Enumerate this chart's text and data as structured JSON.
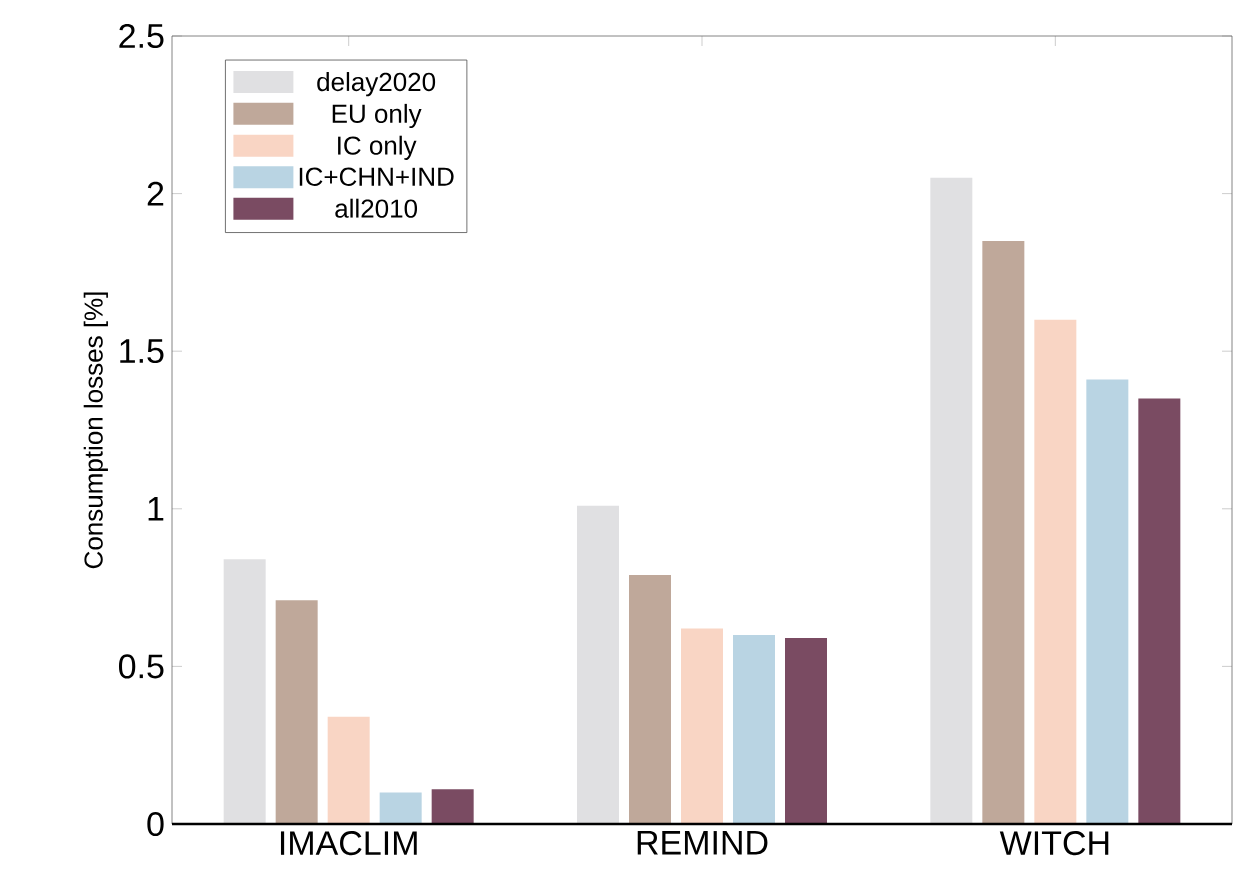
{
  "chart_data": {
    "type": "bar",
    "ylabel": "Consumption losses [%]",
    "categories": [
      "IMACLIM",
      "REMIND",
      "WITCH"
    ],
    "series": [
      {
        "name": "delay2020",
        "color": "#e0e0e2",
        "values": [
          0.84,
          1.01,
          2.05
        ]
      },
      {
        "name": "EU only",
        "color": "#bfa89a",
        "values": [
          0.71,
          0.79,
          1.85
        ]
      },
      {
        "name": "IC only",
        "color": "#f9d5c4",
        "values": [
          0.34,
          0.62,
          1.6
        ]
      },
      {
        "name": "IC+CHN+IND",
        "color": "#b9d4e3",
        "values": [
          0.1,
          0.6,
          1.41
        ]
      },
      {
        "name": "all2010",
        "color": "#7a4b62",
        "values": [
          0.11,
          0.59,
          1.35
        ]
      }
    ],
    "ylim": [
      0,
      2.5
    ],
    "yticks": [
      0,
      0.5,
      1,
      1.5,
      2,
      2.5
    ],
    "legend": "top left",
    "grid": false
  }
}
